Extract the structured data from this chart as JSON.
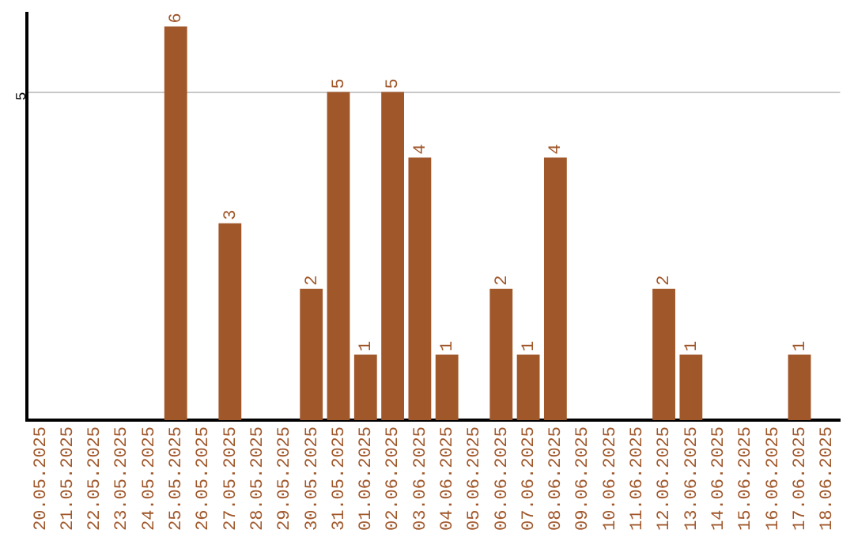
{
  "chart_data": {
    "type": "bar",
    "categories": [
      "20.05.2025",
      "21.05.2025",
      "22.05.2025",
      "23.05.2025",
      "24.05.2025",
      "25.05.2025",
      "26.05.2025",
      "27.05.2025",
      "28.05.2025",
      "29.05.2025",
      "30.05.2025",
      "31.05.2025",
      "01.06.2025",
      "02.06.2025",
      "03.06.2025",
      "04.06.2025",
      "05.06.2025",
      "06.06.2025",
      "07.06.2025",
      "08.06.2025",
      "09.06.2025",
      "10.06.2025",
      "11.06.2025",
      "12.06.2025",
      "13.06.2025",
      "14.06.2025",
      "15.06.2025",
      "16.06.2025",
      "17.06.2025",
      "18.06.2025"
    ],
    "values": [
      0,
      0,
      0,
      0,
      0,
      6,
      0,
      3,
      0,
      0,
      2,
      5,
      1,
      5,
      4,
      1,
      0,
      2,
      1,
      4,
      0,
      0,
      0,
      2,
      1,
      0,
      0,
      0,
      1,
      0
    ],
    "value_labels": [
      null,
      null,
      null,
      null,
      null,
      "6",
      null,
      "3",
      null,
      null,
      "2",
      "5",
      "1",
      "5",
      "4",
      "1",
      null,
      "2",
      "1",
      "4",
      null,
      null,
      null,
      "2",
      "1",
      null,
      null,
      null,
      "1",
      null
    ],
    "color": "#a0572a",
    "ylim": [
      0,
      6.2
    ],
    "yticks": [
      5
    ],
    "grid": "y",
    "legend": false
  }
}
